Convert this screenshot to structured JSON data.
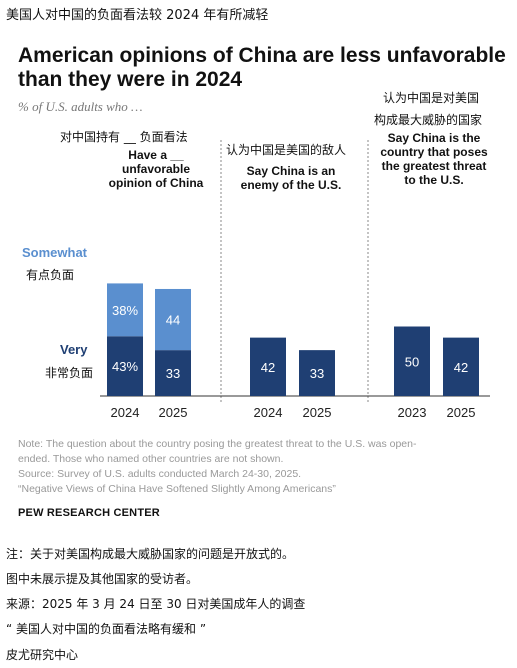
{
  "header_cn": "美国人对中国的负面看法较 2024 年有所减轻",
  "title": "American opinions of China are less unfavorable than they were in 2024",
  "subtitle": "% of U.S. adults who …",
  "panels": [
    {
      "heading_cn": "对中国持有 __ 负面看法",
      "heading": [
        "Have a __",
        "unfavorable",
        "opinion of China"
      ]
    },
    {
      "heading_cn": "认为中国是美国的敌人",
      "heading": [
        "Say China is an",
        "enemy of the U.S."
      ]
    },
    {
      "heading_cn": [
        "认为中国是对美国",
        "构成最大威胁的国家"
      ],
      "heading": [
        "Say China is the",
        "country that poses",
        "the greatest threat",
        "to the U.S."
      ]
    }
  ],
  "legend": {
    "somewhat": "Somewhat",
    "somewhat_cn": "有点负面",
    "very": "Very",
    "very_cn": "非常负面",
    "somewhat_color": "#5a8fcf",
    "very_color": "#1f3f73"
  },
  "chart_data": {
    "type": "bar",
    "panels": [
      {
        "categories": [
          "2024",
          "2025"
        ],
        "series": [
          {
            "name": "Very",
            "values": [
              43,
              33
            ],
            "labels": [
              "43%",
              "33"
            ]
          },
          {
            "name": "Somewhat",
            "values": [
              38,
              44
            ],
            "labels": [
              "38%",
              "44"
            ]
          }
        ]
      },
      {
        "categories": [
          "2024",
          "2025"
        ],
        "series": [
          {
            "name": "",
            "values": [
              42,
              33
            ],
            "labels": [
              "42",
              "33"
            ]
          }
        ]
      },
      {
        "categories": [
          "2023",
          "2025"
        ],
        "series": [
          {
            "name": "",
            "values": [
              50,
              42
            ],
            "labels": [
              "50",
              "42"
            ]
          }
        ]
      }
    ]
  },
  "notes": [
    "Note: The question about the country posing the greatest threat to the U.S. was open-",
    "ended. Those who named other countries are not shown.",
    "Source: Survey of U.S. adults conducted March 24-30, 2025.",
    "“Negative Views of China Have Softened Slightly Among Americans”"
  ],
  "source_org": "PEW RESEARCH CENTER",
  "notes_cn": [
    "注：关于对美国构成最大威胁国家的问题是开放式的。",
    "图中未展示提及其他国家的受访者。",
    "来源：2025 年 3 月 24 日至 30 日对美国成年人的调查",
    "“ 美国人对中国的负面看法略有缓和 ”",
    "皮尤研究中心"
  ]
}
